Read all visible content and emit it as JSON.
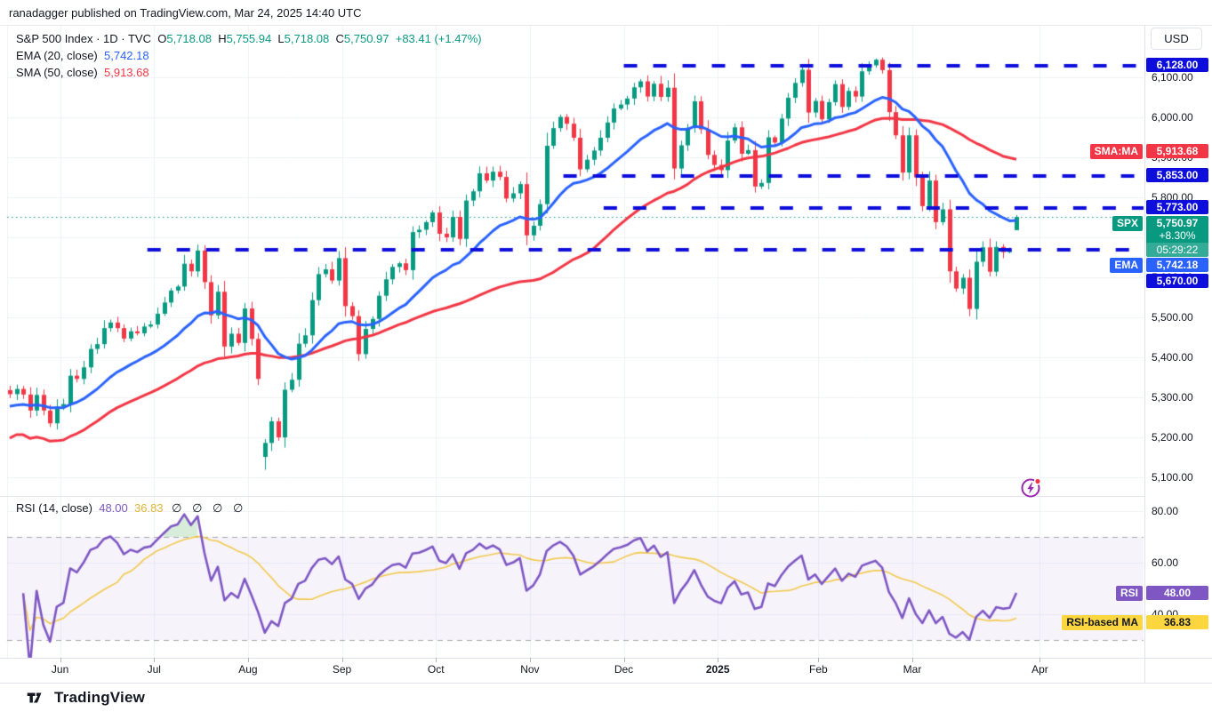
{
  "header": {
    "attribution": "ranadagger published on TradingView.com, Mar 24, 2025 14:40 UTC"
  },
  "main_legend": {
    "display_title": "S&P 500 Index · 1D · TVC",
    "o_label": "O",
    "o": "5,718.08",
    "h_label": "H",
    "h": "5,755.94",
    "l_label": "L",
    "l": "5,718.08",
    "c_label": "C",
    "c": "5,750.97",
    "change": "+83.41 (+1.47%)"
  },
  "ema_legend": {
    "label": "EMA (20, close)",
    "value": "5,742.18"
  },
  "sma_legend": {
    "label": "SMA (50, close)",
    "value": "5,913.68"
  },
  "rsi_legend": {
    "label": "RSI (14, close)",
    "value": "48.00",
    "ma_value": "36.83",
    "hidden": "∅ ∅ ∅ ∅"
  },
  "price_scale": {
    "currency": "USD",
    "tick_labels": [
      "6,100.00",
      "6,000.00",
      "5,900.00",
      "5,800.00",
      "5,700.00",
      "5,600.00",
      "5,500.00",
      "5,400.00",
      "5,300.00",
      "5,200.00",
      "5,100.00"
    ],
    "badges": {
      "level_6128": {
        "value": "6,128.00"
      },
      "sma": {
        "label": "SMA:MA",
        "value": "5,913.68"
      },
      "level_5853": {
        "value": "5,853.00"
      },
      "level_5773": {
        "value": "5,773.00"
      },
      "spx": {
        "label": "SPX",
        "value": "5,750.97",
        "change": "+8.30%",
        "countdown": "05:29:22"
      },
      "ema": {
        "label": "EMA",
        "value": "5,742.18"
      },
      "level_5670": {
        "value": "5,670.00"
      }
    }
  },
  "rsi_scale": {
    "tick_labels": [
      "80.00",
      "60.00",
      "40.00"
    ],
    "rsi_badge": {
      "label": "RSI",
      "value": "48.00"
    },
    "ma_badge": {
      "label": "RSI-based MA",
      "value": "36.83"
    }
  },
  "time_axis": {
    "labels": [
      {
        "text": "Jun",
        "bar": 8
      },
      {
        "text": "Jul",
        "bar": 22
      },
      {
        "text": "Aug",
        "bar": 36
      },
      {
        "text": "Sep",
        "bar": 50
      },
      {
        "text": "Oct",
        "bar": 64
      },
      {
        "text": "Nov",
        "bar": 78
      },
      {
        "text": "Dec",
        "bar": 92
      },
      {
        "text": "2025",
        "bar": 106,
        "bold": true
      },
      {
        "text": "Feb",
        "bar": 121
      },
      {
        "text": "Mar",
        "bar": 135
      },
      {
        "text": "Apr",
        "bar": 154
      }
    ]
  },
  "footer": {
    "brand": "TradingView"
  },
  "colors": {
    "up": "#089981",
    "down": "#F23645",
    "ema_line": "#2962FF",
    "sma_line": "#F23645",
    "level_line": "#0E0EDC",
    "level_badge": "#0E0EDC",
    "current_price_line": "#089981",
    "spx_badge": "#089981",
    "ema_badge": "#2962FF",
    "sma_badge": "#F23645",
    "rsi_line": "#7E57C2",
    "rsi_ma_line": "#F2C94C",
    "rsi_badge": "#7E57C2",
    "rsi_ma_badge": "#FBD63F",
    "rsi_band_fill": "rgba(126,87,194,0.07)",
    "rsi_overbought_fill": "rgba(76,175,80,0.22)",
    "rsi_bound_dash": "rgba(120,123,134,0.65)",
    "grid": "#EFF1F6",
    "border": "#E0E3EB",
    "text": "#131722"
  },
  "chart_data": {
    "type": "candlestick",
    "title": "S&P 500 Index, 1D, TVC",
    "ohlc_current": {
      "open": 5718.08,
      "high": 5755.94,
      "low": 5718.08,
      "close": 5750.97,
      "change": 83.41,
      "change_pct": 1.47
    },
    "price_axis_ticks": [
      6100,
      6000,
      5900,
      5800,
      5700,
      5600,
      5500,
      5400,
      5300,
      5200,
      5100
    ],
    "closes": [
      5308,
      5321,
      5307,
      5267,
      5306,
      5267,
      5235,
      5277,
      5283,
      5354,
      5346,
      5375,
      5421,
      5433,
      5473,
      5487,
      5473,
      5447,
      5465,
      5460,
      5477,
      5482,
      5509,
      5537,
      5567,
      5577,
      5634,
      5615,
      5667,
      5588,
      5505,
      5564,
      5427,
      5459,
      5436,
      5522,
      5446,
      5346,
      5186,
      5240,
      5200,
      5319,
      5344,
      5434,
      5455,
      5543,
      5608,
      5620,
      5592,
      5648,
      5528,
      5503,
      5408,
      5471,
      5496,
      5554,
      5595,
      5626,
      5635,
      5618,
      5713,
      5719,
      5738,
      5762,
      5709,
      5700,
      5751,
      5696,
      5792,
      5815,
      5860,
      5842,
      5864,
      5851,
      5797,
      5810,
      5833,
      5705,
      5729,
      5783,
      5929,
      5973,
      6001,
      5984,
      5949,
      5870,
      5894,
      5917,
      5949,
      5987,
      6022,
      6032,
      6047,
      6075,
      6090,
      6052,
      6084,
      6051,
      6074,
      5872,
      5930,
      5974,
      6040,
      5970,
      5906,
      5881,
      5868,
      5942,
      5975,
      5909,
      5918,
      5827,
      5836,
      5950,
      5937,
      5997,
      6049,
      6086,
      6119,
      6012,
      6041,
      5995,
      6038,
      6083,
      6026,
      6066,
      6052,
      6115,
      6130,
      6144,
      6118,
      6013,
      5955,
      5862,
      5955,
      5850,
      5778,
      5842,
      5738,
      5770,
      5615,
      5572,
      5599,
      5521,
      5639,
      5675,
      5614,
      5676,
      5663,
      5668,
      5750.97
    ],
    "open_overrides": {
      "0": 5318,
      "38": 5151,
      "150": 5718
    },
    "high_overrides": {
      "129": 6147,
      "150": 5756
    },
    "low_overrides": {
      "38": 5119,
      "150": 5718
    },
    "month_start_bars": [
      8,
      22,
      36,
      50,
      64,
      78,
      92,
      106,
      121,
      135,
      154
    ],
    "levels": [
      {
        "price": 6128,
        "from_bar": 92,
        "label": "6,128.00"
      },
      {
        "price": 5853,
        "from_bar": 83,
        "label": "5,853.00"
      },
      {
        "price": 5773,
        "from_bar": 89,
        "label": "5,773.00"
      },
      {
        "price": 5670,
        "from_bar": 21,
        "label": "5,670.00"
      }
    ],
    "current_price_line": 5750.97,
    "indicators": {
      "ema20": {
        "period": 20,
        "last": 5742.18
      },
      "sma50": {
        "period": 50,
        "last": 5913.68
      },
      "rsi14": {
        "period": 14,
        "last": 48.0,
        "ma_last": 36.83,
        "overbought": 70,
        "oversold": 30,
        "axis_ticks": [
          80,
          60,
          40
        ]
      }
    }
  }
}
